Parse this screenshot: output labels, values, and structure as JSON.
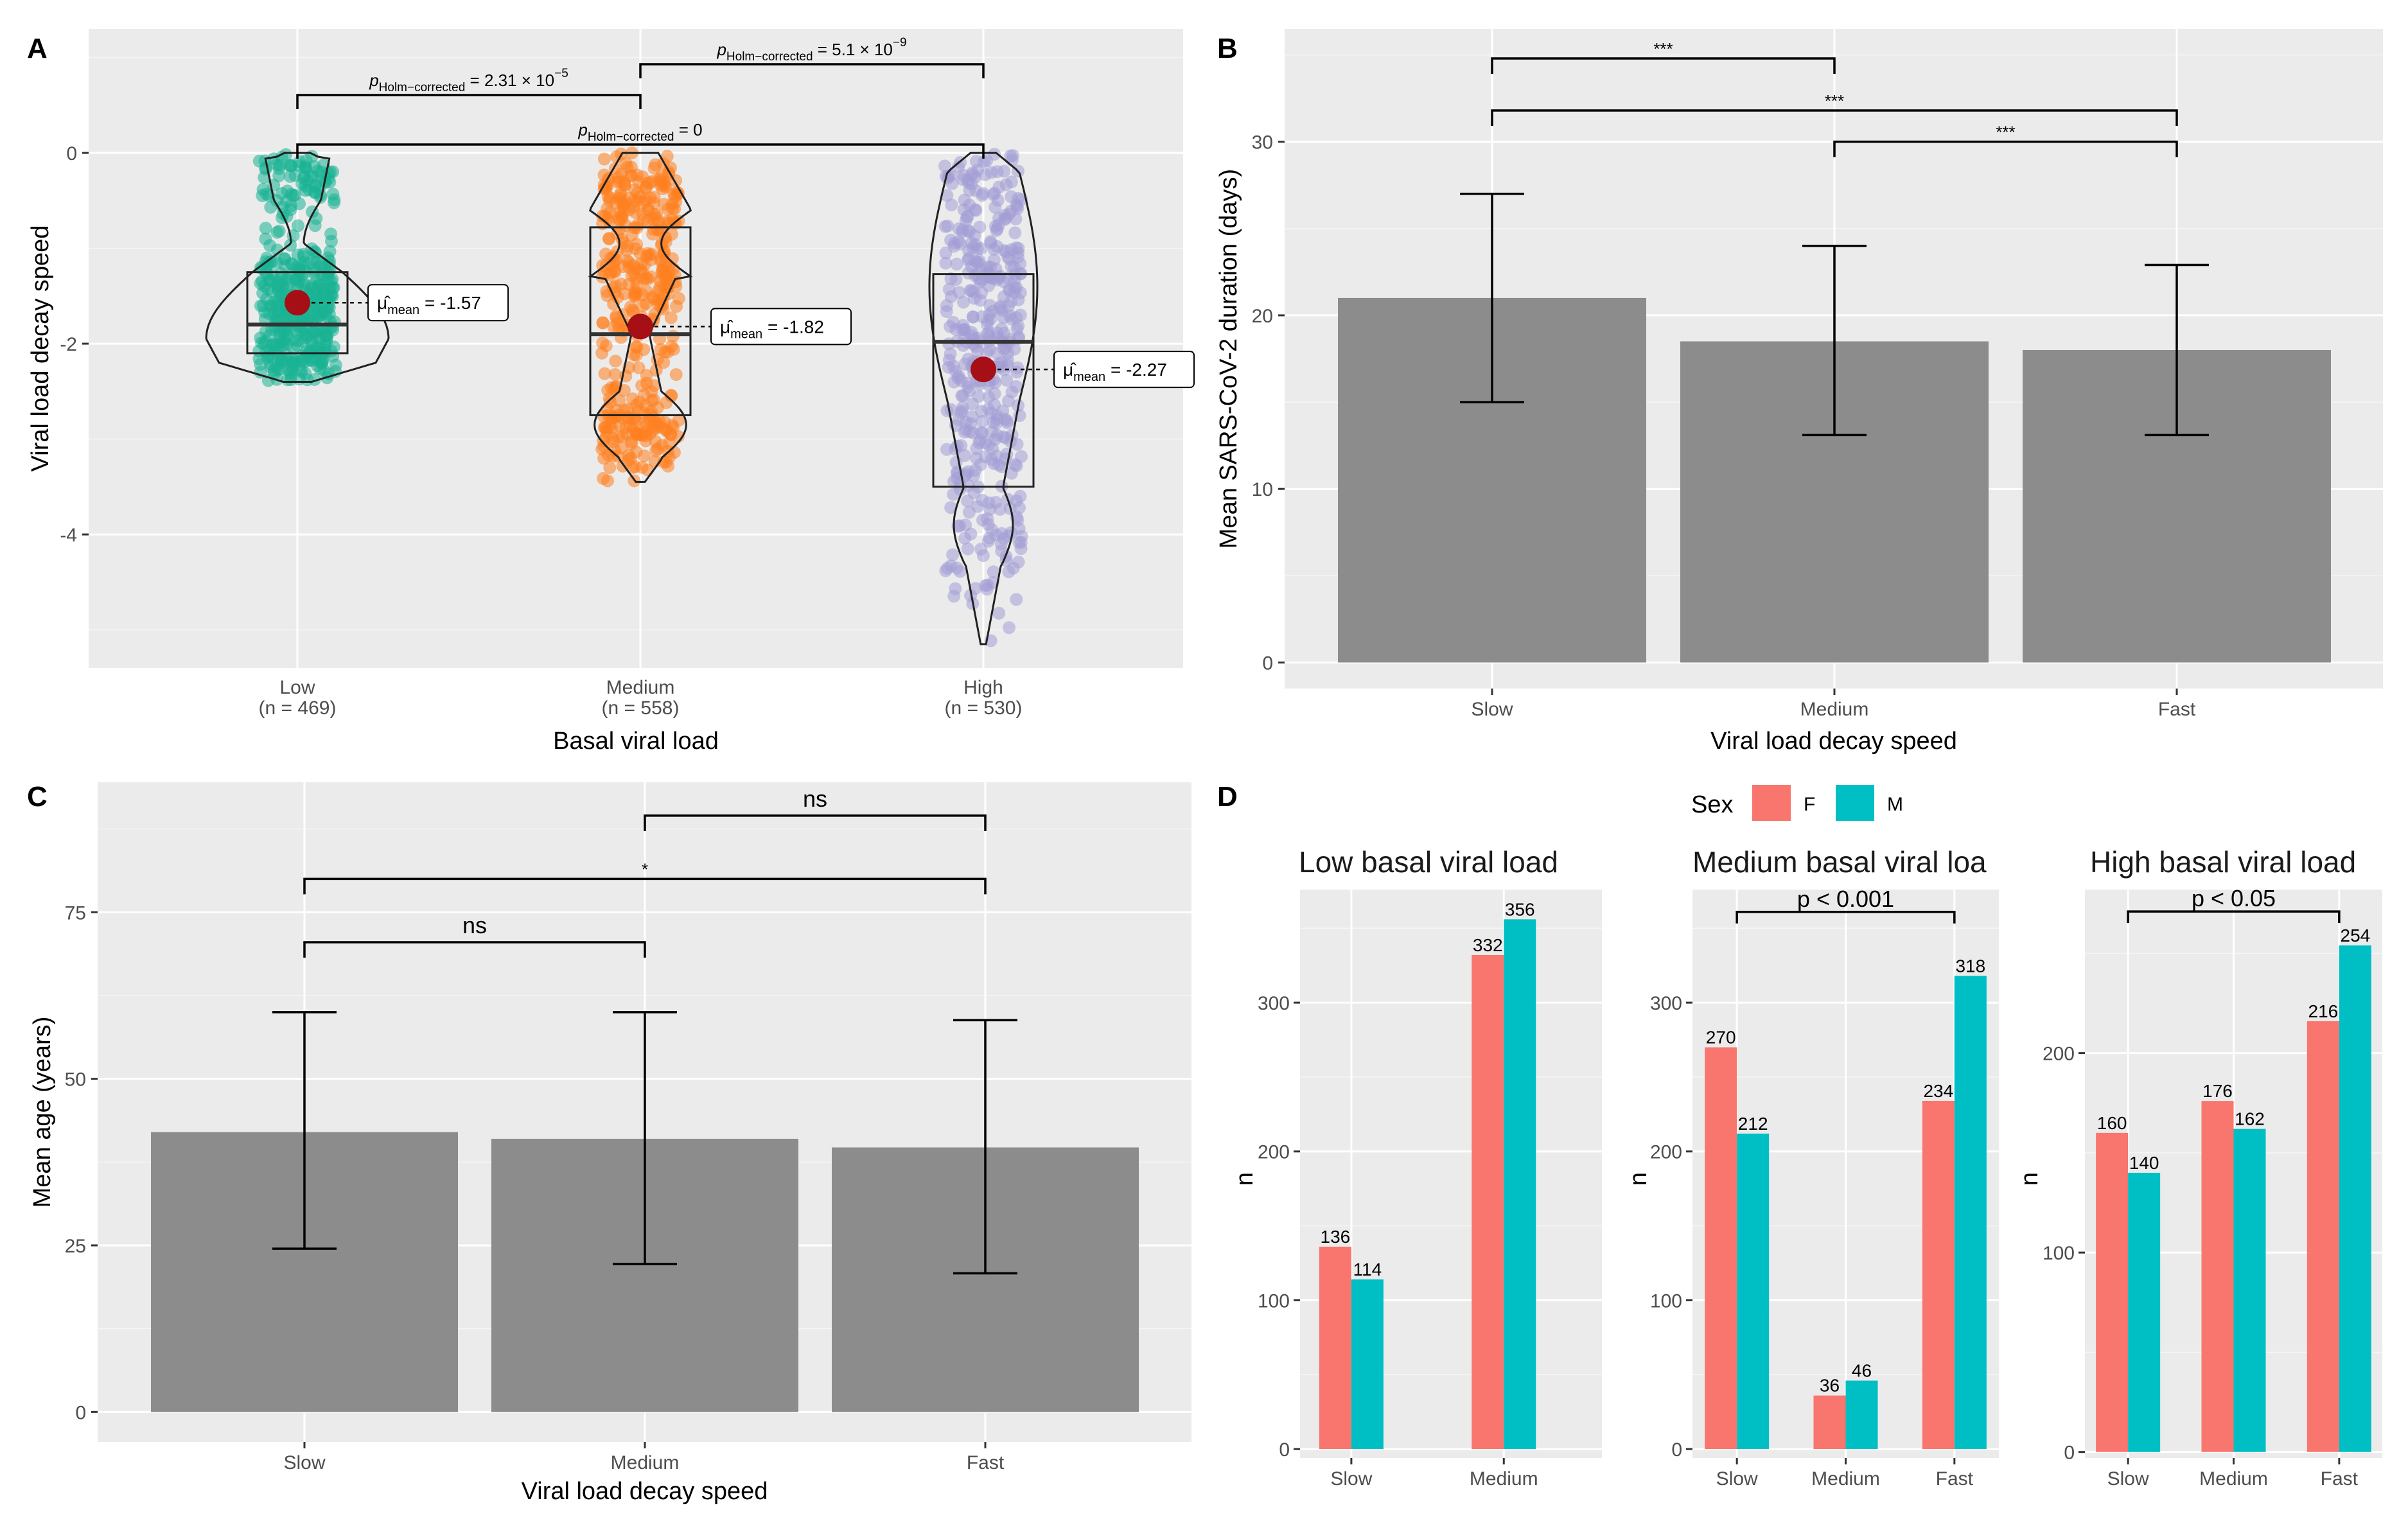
{
  "chart_data": [
    {
      "panel": "A",
      "type": "violin-box-scatter",
      "xlabel": "Basal viral load",
      "ylabel": "Viral load decay speed",
      "yticks": [
        0,
        -2,
        -4
      ],
      "ylim": [
        -5.4,
        1.3
      ],
      "groups": [
        {
          "name": "Low",
          "n_label": "(n = 469)",
          "color": "#1ab394",
          "min": -2.4,
          "max": 0,
          "q1": -2.1,
          "median": -1.8,
          "q3": -1.25,
          "mean": -1.57,
          "mean_label": "-1.57",
          "shape": "low"
        },
        {
          "name": "Medium",
          "n_label": "(n = 558)",
          "color": "#ff7f1f",
          "min": -3.45,
          "max": 0,
          "q1": -2.75,
          "median": -1.9,
          "q3": -0.78,
          "mean": -1.82,
          "mean_label": "-1.82",
          "shape": "medium"
        },
        {
          "name": "High",
          "n_label": "(n = 530)",
          "color": "#a29fd6",
          "min": -5.15,
          "max": 0,
          "q1": -3.5,
          "median": -1.98,
          "q3": -1.27,
          "mean": -2.27,
          "mean_label": "-2.27",
          "shape": "high"
        }
      ],
      "annotations": {
        "mean_symbol": "μ̂",
        "mean_sub": "mean",
        "mean_eq": " = "
      },
      "comparisons": [
        {
          "from": 0,
          "to": 1,
          "level": 0,
          "p_prefix": "p",
          "p_sub": "Holm−corrected",
          "p_eq": " = 2.31 × 10",
          "p_sup": "−5"
        },
        {
          "from": 1,
          "to": 2,
          "level": 1,
          "p_prefix": "p",
          "p_sub": "Holm−corrected",
          "p_eq": " = 5.1 × 10",
          "p_sup": "−9"
        },
        {
          "from": 0,
          "to": 2,
          "level": -1,
          "p_prefix": "p",
          "p_sub": "Holm−corrected",
          "p_eq": " = 0",
          "p_sup": ""
        }
      ]
    },
    {
      "panel": "B",
      "type": "bar",
      "xlabel": "Viral load decay speed",
      "ylabel": "Mean SARS-CoV-2 duration (days)",
      "categories": [
        "Slow",
        "Medium",
        "Fast"
      ],
      "values": [
        21,
        18.5,
        18
      ],
      "err_low": [
        15,
        13.1,
        13.1
      ],
      "err_high": [
        27,
        24,
        22.9
      ],
      "yticks": [
        0,
        10,
        20,
        30
      ],
      "ylim": [
        -1.5,
        36.5
      ],
      "comparisons": [
        {
          "from": 0,
          "to": 1,
          "y": 34.8,
          "label": "***"
        },
        {
          "from": 0,
          "to": 2,
          "y": 31.8,
          "label": "***"
        },
        {
          "from": 1,
          "to": 2,
          "y": 30.0,
          "label": "***"
        }
      ]
    },
    {
      "panel": "C",
      "type": "bar",
      "xlabel": "Viral load decay speed",
      "ylabel": "Mean age (years)",
      "categories": [
        "Slow",
        "Medium",
        "Fast"
      ],
      "values": [
        42,
        41,
        39.7
      ],
      "err_low": [
        24.5,
        22.2,
        20.8
      ],
      "err_high": [
        60,
        60,
        58.8
      ],
      "yticks": [
        0,
        25,
        50,
        75
      ],
      "ylim": [
        -4.5,
        94.5
      ],
      "comparisons": [
        {
          "from": 1,
          "to": 2,
          "y": 89.5,
          "label": "ns"
        },
        {
          "from": 0,
          "to": 2,
          "y": 80,
          "label": "*"
        },
        {
          "from": 0,
          "to": 1,
          "y": 70.5,
          "label": "ns"
        }
      ]
    },
    {
      "panel": "D",
      "type": "grouped-bar",
      "ylabel": "n",
      "legend": {
        "title": "Sex",
        "entries": [
          {
            "name": "F",
            "color": "#f8766d"
          },
          {
            "name": "M",
            "color": "#00bfc4"
          }
        ]
      },
      "facets": [
        {
          "title": "Low basal viral load",
          "categories": [
            "Slow",
            "Medium"
          ],
          "series": [
            {
              "name": "F",
              "values": [
                136,
                332
              ]
            },
            {
              "name": "M",
              "values": [
                114,
                356
              ]
            }
          ],
          "yticks": [
            0,
            100,
            200,
            300
          ],
          "ylim": [
            -6,
            376
          ],
          "sig": null
        },
        {
          "title": "Medium basal viral loa",
          "categories": [
            "Slow",
            "Medium",
            "Fast"
          ],
          "series": [
            {
              "name": "F",
              "values": [
                270,
                36,
                234
              ]
            },
            {
              "name": "M",
              "values": [
                212,
                46,
                318
              ]
            }
          ],
          "yticks": [
            0,
            100,
            200,
            300
          ],
          "ylim": [
            -6,
            376
          ],
          "sig": {
            "from": 0,
            "to": 2,
            "y": 361,
            "label": "p < 0.001"
          }
        },
        {
          "title": "High basal viral load",
          "categories": [
            "Slow",
            "Medium",
            "Fast"
          ],
          "series": [
            {
              "name": "F",
              "values": [
                160,
                176,
                216
              ]
            },
            {
              "name": "M",
              "values": [
                140,
                162,
                254
              ]
            }
          ],
          "yticks": [
            0,
            100,
            200
          ],
          "ylim": [
            -3,
            282
          ],
          "sig": {
            "from": 0,
            "to": 2,
            "y": 271,
            "label": "p < 0.05"
          }
        }
      ]
    }
  ],
  "panel_letters": {
    "A": "A",
    "B": "B",
    "C": "C",
    "D": "D"
  }
}
